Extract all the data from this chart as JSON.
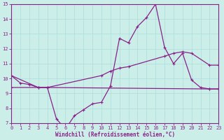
{
  "bg_color": "#cceee8",
  "grid_color": "#aadddd",
  "line_color": "#882288",
  "xlabel": "Windchill (Refroidissement éolien,°C)",
  "ylim": [
    7,
    15
  ],
  "xlim": [
    0,
    23
  ],
  "yticks": [
    7,
    8,
    9,
    10,
    11,
    12,
    13,
    14,
    15
  ],
  "xticks": [
    0,
    1,
    2,
    3,
    4,
    5,
    6,
    7,
    8,
    9,
    10,
    11,
    12,
    13,
    14,
    15,
    16,
    17,
    18,
    19,
    20,
    21,
    22,
    23
  ],
  "line1_x": [
    0,
    1,
    2,
    3,
    4,
    5,
    6,
    7,
    8,
    9,
    10,
    11,
    12,
    13,
    14,
    15,
    16,
    17,
    18,
    19,
    20,
    21,
    22,
    23
  ],
  "line1_y": [
    10.2,
    9.7,
    9.6,
    9.4,
    9.4,
    7.3,
    6.6,
    7.5,
    7.9,
    8.3,
    8.4,
    9.5,
    12.7,
    12.4,
    13.5,
    14.1,
    15.0,
    12.1,
    11.0,
    11.7,
    9.9,
    9.4,
    9.3,
    9.3
  ],
  "line2_x": [
    0,
    3,
    4,
    10,
    11,
    12,
    13,
    17,
    18,
    19,
    20,
    22,
    23
  ],
  "line2_y": [
    10.2,
    9.4,
    9.4,
    10.2,
    10.5,
    10.7,
    10.8,
    11.5,
    11.7,
    11.8,
    11.7,
    10.9,
    10.9
  ],
  "line3_x": [
    0,
    3,
    4,
    22,
    23
  ],
  "line3_y": [
    9.4,
    9.4,
    9.4,
    9.3,
    9.3
  ]
}
